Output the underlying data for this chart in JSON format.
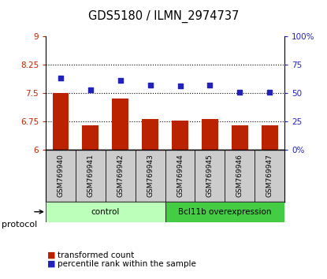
{
  "title": "GDS5180 / ILMN_2974737",
  "samples": [
    "GSM769940",
    "GSM769941",
    "GSM769942",
    "GSM769943",
    "GSM769944",
    "GSM769945",
    "GSM769946",
    "GSM769947"
  ],
  "bar_values": [
    7.5,
    6.65,
    7.35,
    6.82,
    6.78,
    6.82,
    6.65,
    6.65
  ],
  "dot_values": [
    63,
    53,
    61,
    57,
    56,
    57,
    51,
    51
  ],
  "ylim_left": [
    6,
    9
  ],
  "ylim_right": [
    0,
    100
  ],
  "yticks_left": [
    6,
    6.75,
    7.5,
    8.25,
    9
  ],
  "yticks_right": [
    0,
    25,
    50,
    75,
    100
  ],
  "ytick_labels_left": [
    "6",
    "6.75",
    "7.5",
    "8.25",
    "9"
  ],
  "ytick_labels_right": [
    "0%",
    "25",
    "50",
    "75",
    "100%"
  ],
  "bar_color": "#BB2200",
  "dot_color": "#2222BB",
  "groups": [
    {
      "label": "control",
      "start": 0,
      "end": 4,
      "color": "#BBFFBB"
    },
    {
      "label": "Bcl11b overexpression",
      "start": 4,
      "end": 8,
      "color": "#44CC44"
    }
  ],
  "protocol_label": "protocol",
  "legend_bar_label": "transformed count",
  "legend_dot_label": "percentile rank within the sample",
  "sample_box_color": "#CCCCCC",
  "plot_bg": "#FFFFFF"
}
